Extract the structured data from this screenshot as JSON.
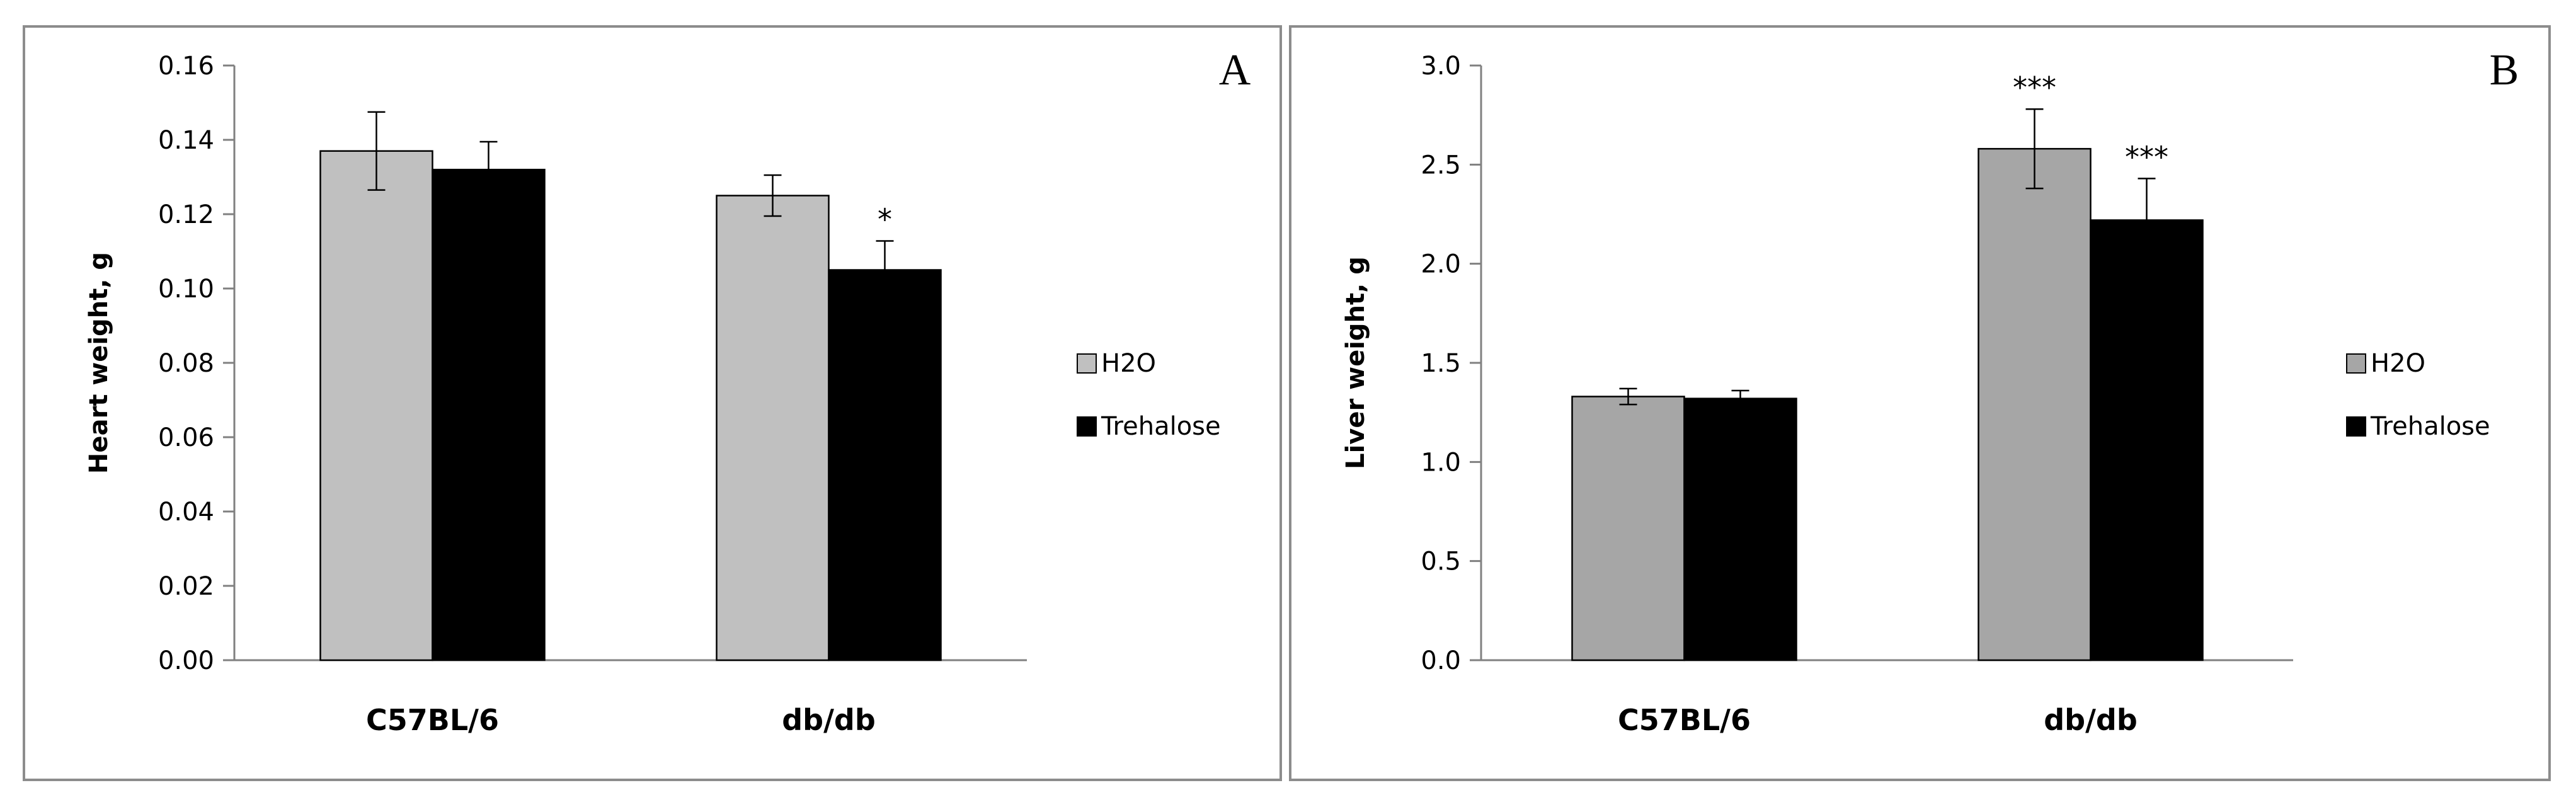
{
  "chart_data": [
    {
      "type": "bar",
      "panel_label": "A",
      "categories": [
        "C57BL/6",
        "db/db"
      ],
      "series": [
        {
          "name": "H2O",
          "values": [
            0.137,
            0.125
          ],
          "errors": [
            0.0105,
            0.0055
          ],
          "color": "#c0c0c0"
        },
        {
          "name": "Trehalose",
          "values": [
            0.132,
            0.105
          ],
          "errors": [
            0.0075,
            0.0078
          ],
          "color": "#000000"
        }
      ],
      "significance": [
        [
          "",
          ""
        ],
        [
          "",
          "*"
        ]
      ],
      "ylabel": "Heart weight, g",
      "ylim": [
        0,
        0.16
      ],
      "yticks": [
        "0.00",
        "0.02",
        "0.04",
        "0.06",
        "0.08",
        "0.10",
        "0.12",
        "0.14",
        "0.16"
      ],
      "legend_position": "right"
    },
    {
      "type": "bar",
      "panel_label": "B",
      "categories": [
        "C57BL/6",
        "db/db"
      ],
      "series": [
        {
          "name": "H2O",
          "values": [
            1.33,
            2.58
          ],
          "errors": [
            0.04,
            0.2
          ],
          "color": "#a6a6a6"
        },
        {
          "name": "Trehalose",
          "values": [
            1.32,
            2.22
          ],
          "errors": [
            0.04,
            0.21
          ],
          "color": "#000000"
        }
      ],
      "significance": [
        [
          "",
          ""
        ],
        [
          "***",
          "***"
        ]
      ],
      "ylabel": "Liver weight, g",
      "ylim": [
        0,
        3.0
      ],
      "yticks": [
        "0.0",
        "0.5",
        "1.0",
        "1.5",
        "2.0",
        "2.5",
        "3.0"
      ],
      "legend_position": "right"
    }
  ]
}
